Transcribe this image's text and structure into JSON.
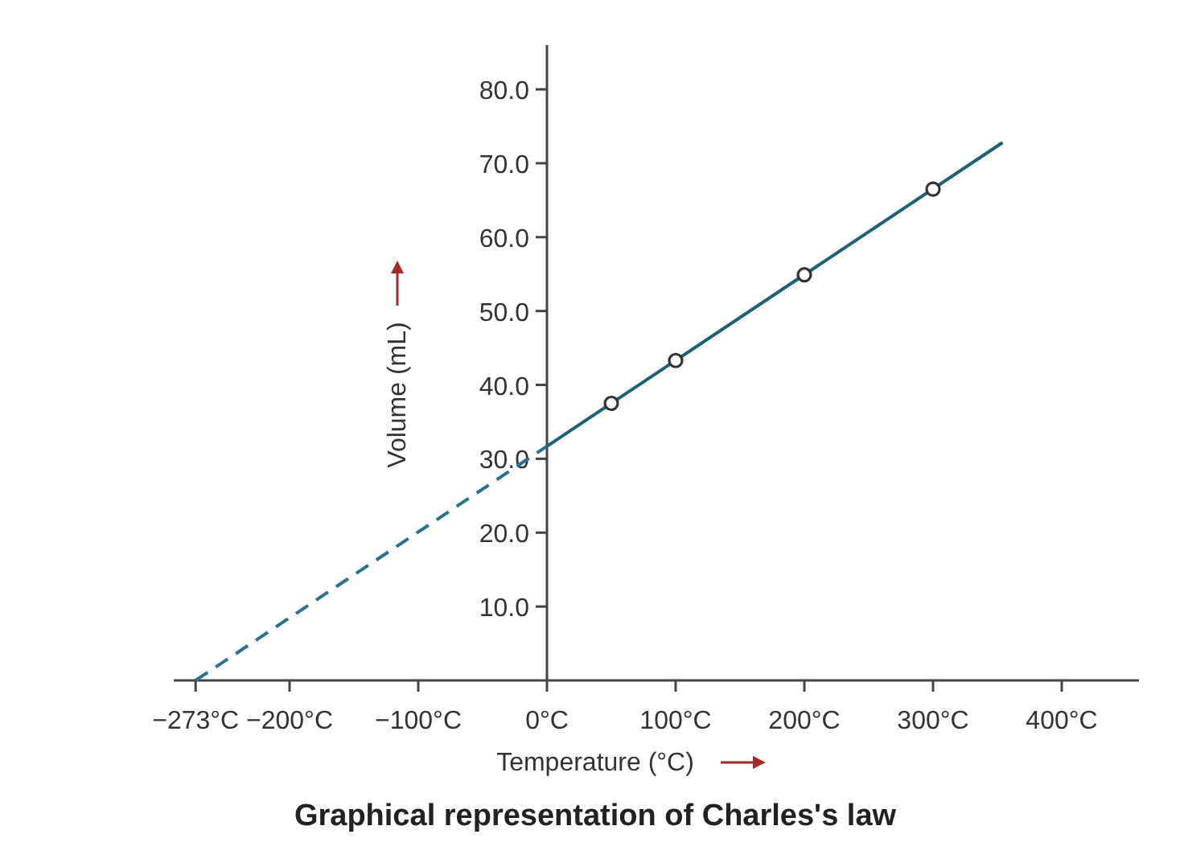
{
  "chart_data": {
    "type": "line",
    "title": "Graphical representation of Charles's law",
    "xlabel": "Temperature (°C)",
    "ylabel": "Volume (mL)",
    "xlim": [
      -290,
      460
    ],
    "ylim": [
      0,
      86
    ],
    "xticks": [
      {
        "value": -273,
        "label": "−273°C"
      },
      {
        "value": -200,
        "label": "−200°C"
      },
      {
        "value": -100,
        "label": "−100°C"
      },
      {
        "value": 0,
        "label": "0°C"
      },
      {
        "value": 100,
        "label": "100°C"
      },
      {
        "value": 200,
        "label": "200°C"
      },
      {
        "value": 300,
        "label": "300°C"
      },
      {
        "value": 400,
        "label": "400°C"
      }
    ],
    "yticks": [
      {
        "value": 10,
        "label": "10.0"
      },
      {
        "value": 20,
        "label": "20.0"
      },
      {
        "value": 30,
        "label": "30.0"
      },
      {
        "value": 40,
        "label": "40.0"
      },
      {
        "value": 50,
        "label": "50.0"
      },
      {
        "value": 60,
        "label": "60.0"
      },
      {
        "value": 70,
        "label": "70.0"
      },
      {
        "value": 80,
        "label": "80.0"
      }
    ],
    "grid": false,
    "series": [
      {
        "color": "#1f5f78",
        "line_style": "solid",
        "marker": "none",
        "x": [
          0,
          354
        ],
        "values": [
          31.7,
          72.8
        ]
      },
      {
        "type": "line",
        "color": "#2a7090",
        "line_style": "dashed",
        "marker": "none",
        "x": [
          -273,
          0
        ],
        "values": [
          0,
          31.7
        ]
      },
      {
        "type": "scatter",
        "color": "#333333",
        "marker": "circle",
        "x": [
          50,
          100,
          200,
          300
        ],
        "values": [
          37.5,
          43.3,
          54.9,
          66.5
        ]
      }
    ]
  }
}
